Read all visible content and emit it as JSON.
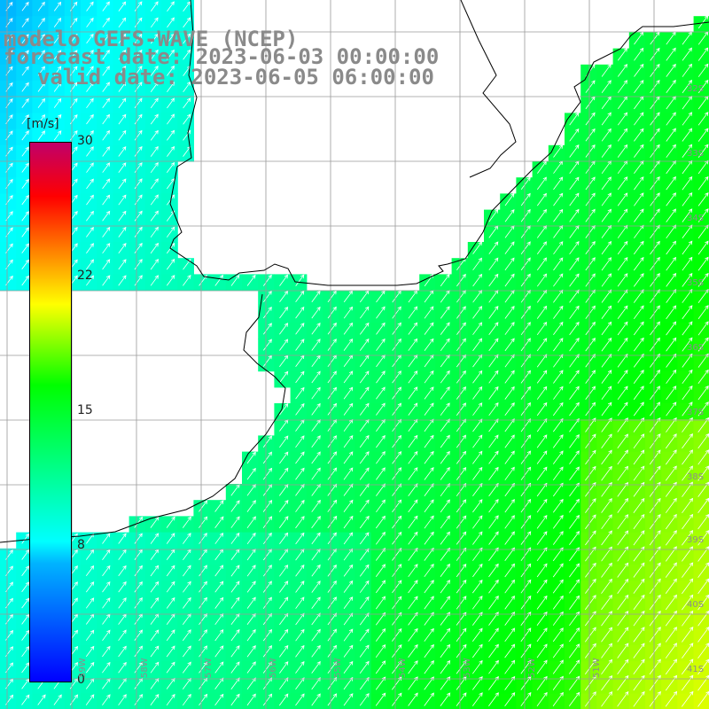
{
  "header": {
    "line1": "modelo GEFS-WAVE (NCEP)",
    "line2": "forecast date: 2023-06-03 00:00:00",
    "line3": "valid date: 2023-06-05 06:00:00"
  },
  "colorbar": {
    "unit": "[m/s]",
    "ticks": [
      "30",
      "22",
      "15",
      "8",
      "0"
    ],
    "tick_values": [
      30,
      22,
      15,
      8,
      0
    ],
    "stops": [
      "#0000ff",
      "#00b4ff",
      "#00ffff",
      "#00ff00",
      "#ffff00",
      "#ff8000",
      "#ff0000",
      "#c0006a"
    ]
  },
  "map": {
    "lat_labels": [
      "32S",
      "33S",
      "34S",
      "35S",
      "36S",
      "37S",
      "38S",
      "39S",
      "40S",
      "41S"
    ],
    "lon_labels": [
      "59W",
      "58W",
      "57W",
      "56W",
      "55W",
      "54W",
      "53W",
      "52W",
      "51W"
    ],
    "land_color": "#ffffff",
    "grid_color": "#9a9a9a",
    "arrow_color": "#ffffff",
    "wind_direction": "from southwest"
  }
}
